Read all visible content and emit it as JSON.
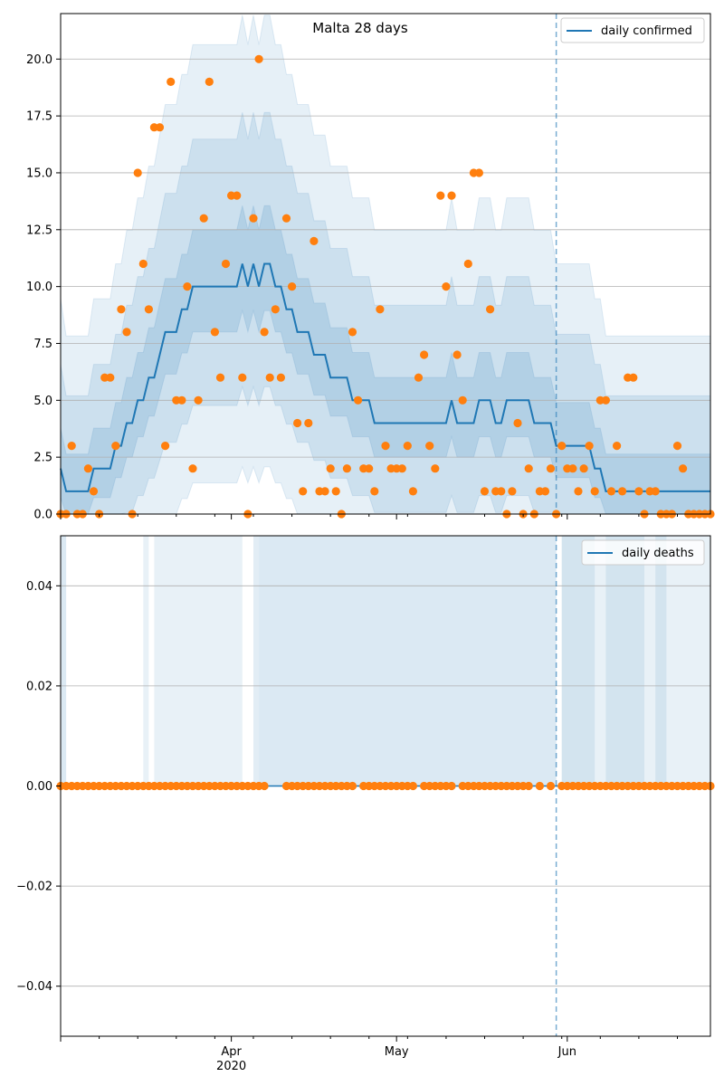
{
  "chart_data": [
    {
      "type": "line",
      "title": "Malta 28 days",
      "xlabel": "",
      "ylabel": "",
      "ylim": [
        0,
        22
      ],
      "yticks": [
        "0.0",
        "2.5",
        "5.0",
        "7.5",
        "10.0",
        "12.5",
        "15.0",
        "17.5",
        "20.0"
      ],
      "ytick_values": [
        0,
        2.5,
        5.0,
        7.5,
        10.0,
        12.5,
        15.0,
        17.5,
        20.0
      ],
      "x_start": "2020-03-01",
      "x_end": "2020-06-27",
      "grid": "horizontal",
      "legend_position": "upper right",
      "vline_date": "2020-05-30",
      "series": [
        {
          "name": "daily confirmed",
          "type": "line",
          "x": [
            "2020-03-01",
            "2020-03-02",
            "2020-03-06",
            "2020-03-07",
            "2020-03-10",
            "2020-03-11",
            "2020-03-12",
            "2020-03-13",
            "2020-03-14",
            "2020-03-15",
            "2020-03-16",
            "2020-03-17",
            "2020-03-18",
            "2020-03-19",
            "2020-03-20",
            "2020-03-21",
            "2020-03-22",
            "2020-03-23",
            "2020-03-24",
            "2020-03-25",
            "2020-03-26",
            "2020-03-27",
            "2020-03-28",
            "2020-04-02",
            "2020-04-03",
            "2020-04-04",
            "2020-04-05",
            "2020-04-06",
            "2020-04-07",
            "2020-04-08",
            "2020-04-09",
            "2020-04-10",
            "2020-04-11",
            "2020-04-13",
            "2020-04-14",
            "2020-04-16",
            "2020-04-17",
            "2020-04-19",
            "2020-04-20",
            "2020-04-23",
            "2020-04-24",
            "2020-04-27",
            "2020-05-10",
            "2020-05-11",
            "2020-05-12",
            "2020-05-13",
            "2020-05-16",
            "2020-05-17",
            "2020-05-18",
            "2020-05-19",
            "2020-05-21",
            "2020-05-26",
            "2020-05-30",
            "2020-06-06",
            "2020-06-07",
            "2020-06-08",
            "2020-06-27"
          ],
          "y": [
            2,
            1,
            1,
            2,
            2,
            3,
            3,
            4,
            4,
            5,
            5,
            6,
            6,
            7,
            8,
            8,
            8,
            9,
            9,
            10,
            10,
            10,
            10,
            10,
            11,
            10,
            11,
            10,
            11,
            11,
            10,
            10,
            9,
            8,
            8,
            7,
            7,
            6,
            6,
            5,
            5,
            4,
            4,
            5,
            4,
            4,
            5,
            5,
            5,
            4,
            5,
            4,
            3,
            2,
            2,
            1,
            1
          ]
        },
        {
          "name": "",
          "type": "scatter",
          "color": "#ff7f0e",
          "x": [
            "2020-03-01",
            "2020-03-02",
            "2020-03-03",
            "2020-03-04",
            "2020-03-05",
            "2020-03-06",
            "2020-03-07",
            "2020-03-08",
            "2020-03-09",
            "2020-03-10",
            "2020-03-11",
            "2020-03-12",
            "2020-03-13",
            "2020-03-14",
            "2020-03-15",
            "2020-03-16",
            "2020-03-17",
            "2020-03-18",
            "2020-03-19",
            "2020-03-20",
            "2020-03-21",
            "2020-03-22",
            "2020-03-23",
            "2020-03-24",
            "2020-03-25",
            "2020-03-26",
            "2020-03-27",
            "2020-03-28",
            "2020-03-29",
            "2020-03-30",
            "2020-03-31",
            "2020-04-01",
            "2020-04-02",
            "2020-04-03",
            "2020-04-04",
            "2020-04-05",
            "2020-04-06",
            "2020-04-07",
            "2020-04-08",
            "2020-04-09",
            "2020-04-10",
            "2020-04-11",
            "2020-04-12",
            "2020-04-13",
            "2020-04-14",
            "2020-04-15",
            "2020-04-16",
            "2020-04-17",
            "2020-04-18",
            "2020-04-19",
            "2020-04-20",
            "2020-04-21",
            "2020-04-22",
            "2020-04-23",
            "2020-04-24",
            "2020-04-25",
            "2020-04-26",
            "2020-04-27",
            "2020-04-28",
            "2020-04-29",
            "2020-04-30",
            "2020-05-01",
            "2020-05-02",
            "2020-05-03",
            "2020-05-04",
            "2020-05-05",
            "2020-05-06",
            "2020-05-07",
            "2020-05-08",
            "2020-05-09",
            "2020-05-10",
            "2020-05-11",
            "2020-05-12",
            "2020-05-13",
            "2020-05-14",
            "2020-05-15",
            "2020-05-16",
            "2020-05-17",
            "2020-05-18",
            "2020-05-19",
            "2020-05-20",
            "2020-05-21",
            "2020-05-22",
            "2020-05-23",
            "2020-05-24",
            "2020-05-25",
            "2020-05-26",
            "2020-05-27",
            "2020-05-28",
            "2020-05-29",
            "2020-05-30",
            "2020-05-31",
            "2020-06-01",
            "2020-06-02",
            "2020-06-03",
            "2020-06-04",
            "2020-06-05",
            "2020-06-06",
            "2020-06-07",
            "2020-06-08",
            "2020-06-09",
            "2020-06-10",
            "2020-06-11",
            "2020-06-12",
            "2020-06-13",
            "2020-06-14",
            "2020-06-15",
            "2020-06-16",
            "2020-06-17",
            "2020-06-18",
            "2020-06-19",
            "2020-06-20",
            "2020-06-21",
            "2020-06-22",
            "2020-06-23",
            "2020-06-24",
            "2020-06-25",
            "2020-06-26",
            "2020-06-27"
          ],
          "y": [
            0,
            0,
            3,
            0,
            0,
            2,
            1,
            0,
            6,
            6,
            3,
            9,
            8,
            0,
            15,
            11,
            9,
            17,
            17,
            3,
            19,
            5,
            5,
            10,
            2,
            5,
            13,
            19,
            8,
            6,
            11,
            14,
            14,
            6,
            0,
            13,
            20,
            8,
            6,
            9,
            6,
            13,
            10,
            4,
            1,
            4,
            12,
            1,
            1,
            2,
            1,
            0,
            2,
            8,
            5,
            2,
            2,
            1,
            9,
            3,
            2,
            2,
            2,
            3,
            1,
            6,
            7,
            3,
            2,
            14,
            10,
            14,
            7,
            5,
            11,
            15,
            15,
            1,
            9,
            1,
            1,
            0,
            1,
            4,
            0,
            2,
            0,
            1,
            1,
            2,
            0,
            3,
            2,
            2,
            1,
            2,
            3,
            1,
            5,
            5,
            1,
            3,
            1,
            6,
            6,
            1,
            0,
            1,
            1,
            0,
            0,
            0,
            3,
            2,
            0,
            0,
            0,
            0,
            0
          ]
        }
      ]
    },
    {
      "type": "line",
      "title": "",
      "xlabel": "",
      "ylabel": "",
      "ylim": [
        -0.05,
        0.05
      ],
      "yticks": [
        "−0.04",
        "−0.02",
        "0.00",
        "0.02",
        "0.04"
      ],
      "ytick_values": [
        -0.04,
        -0.02,
        0.0,
        0.02,
        0.04
      ],
      "xticks": [
        "Apr",
        "May",
        "Jun"
      ],
      "xtick_dates": [
        "2020-04-01",
        "2020-05-01",
        "2020-06-01"
      ],
      "xtick_year": "2020",
      "grid": "horizontal",
      "legend_position": "upper right",
      "vline_date": "2020-05-30",
      "series": [
        {
          "name": "daily deaths",
          "type": "line",
          "x": [
            "2020-03-01",
            "2020-06-27"
          ],
          "y": [
            0,
            0
          ]
        },
        {
          "name": "",
          "type": "scatter",
          "color": "#ff7f0e",
          "constant_value": 0,
          "x_start": "2020-03-01",
          "x_end": "2020-06-27",
          "missing_dates": [
            "2020-04-08",
            "2020-04-09",
            "2020-04-10",
            "2020-04-24",
            "2020-05-05",
            "2020-05-12",
            "2020-05-26",
            "2020-05-28",
            "2020-05-30"
          ]
        }
      ]
    }
  ],
  "colors": {
    "line": "#1f77b4",
    "points": "#ff7f0e",
    "band": "#1f77b4",
    "grid": "#b0b0b0"
  }
}
